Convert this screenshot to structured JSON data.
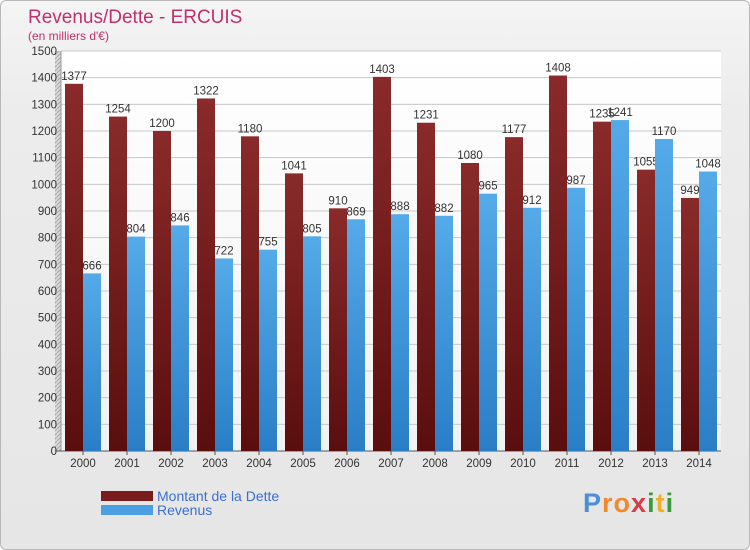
{
  "title": "Revenus/Dette - ERCUIS",
  "subtitle": "(en milliers d'€)",
  "logo": [
    "P",
    "r",
    "o",
    "x",
    "i",
    "t",
    "i"
  ],
  "logo_colors": [
    "#4a8fd8",
    "#f08a2a",
    "#f08a2a",
    "#d83a4a",
    "#3b9a3b",
    "#f0b02a",
    "#3b9a3b"
  ],
  "colors": {
    "dette": "#7a1c1c",
    "revenus": "#4aa0e0"
  },
  "legend": [
    {
      "label": "Montant de la Dette",
      "color": "#7a1c1c"
    },
    {
      "label": "Revenus",
      "color": "#4aa0e0"
    }
  ],
  "chart_data": {
    "type": "bar",
    "categories": [
      "2000",
      "2001",
      "2002",
      "2003",
      "2004",
      "2005",
      "2006",
      "2007",
      "2008",
      "2009",
      "2010",
      "2011",
      "2012",
      "2013",
      "2014"
    ],
    "series": [
      {
        "name": "Montant de la Dette",
        "values": [
          1377,
          1254,
          1200,
          1322,
          1180,
          1041,
          910,
          1403,
          1231,
          1080,
          1177,
          1408,
          1235,
          1055,
          949
        ],
        "labels": [
          "1377",
          "1254",
          "1200",
          "1322",
          "1180",
          "1041",
          "910",
          "1403",
          "1231",
          "1080",
          "1177",
          "1408",
          "1235",
          "1055",
          "949"
        ]
      },
      {
        "name": "Revenus",
        "values": [
          666,
          804,
          846,
          722,
          755,
          805,
          869,
          888,
          882,
          965,
          912,
          987,
          1241,
          1170,
          1048
        ],
        "labels": [
          "666",
          "804",
          "846",
          "722",
          "755",
          "805",
          "869",
          "888",
          "882",
          "965",
          "912",
          "987",
          "1241",
          "1170",
          "1048"
        ]
      }
    ],
    "ylim": [
      0,
      1500
    ],
    "yticks": [
      0,
      100,
      200,
      300,
      400,
      500,
      600,
      700,
      800,
      900,
      1000,
      1100,
      1200,
      1300,
      1400,
      1500
    ],
    "grid": true
  }
}
